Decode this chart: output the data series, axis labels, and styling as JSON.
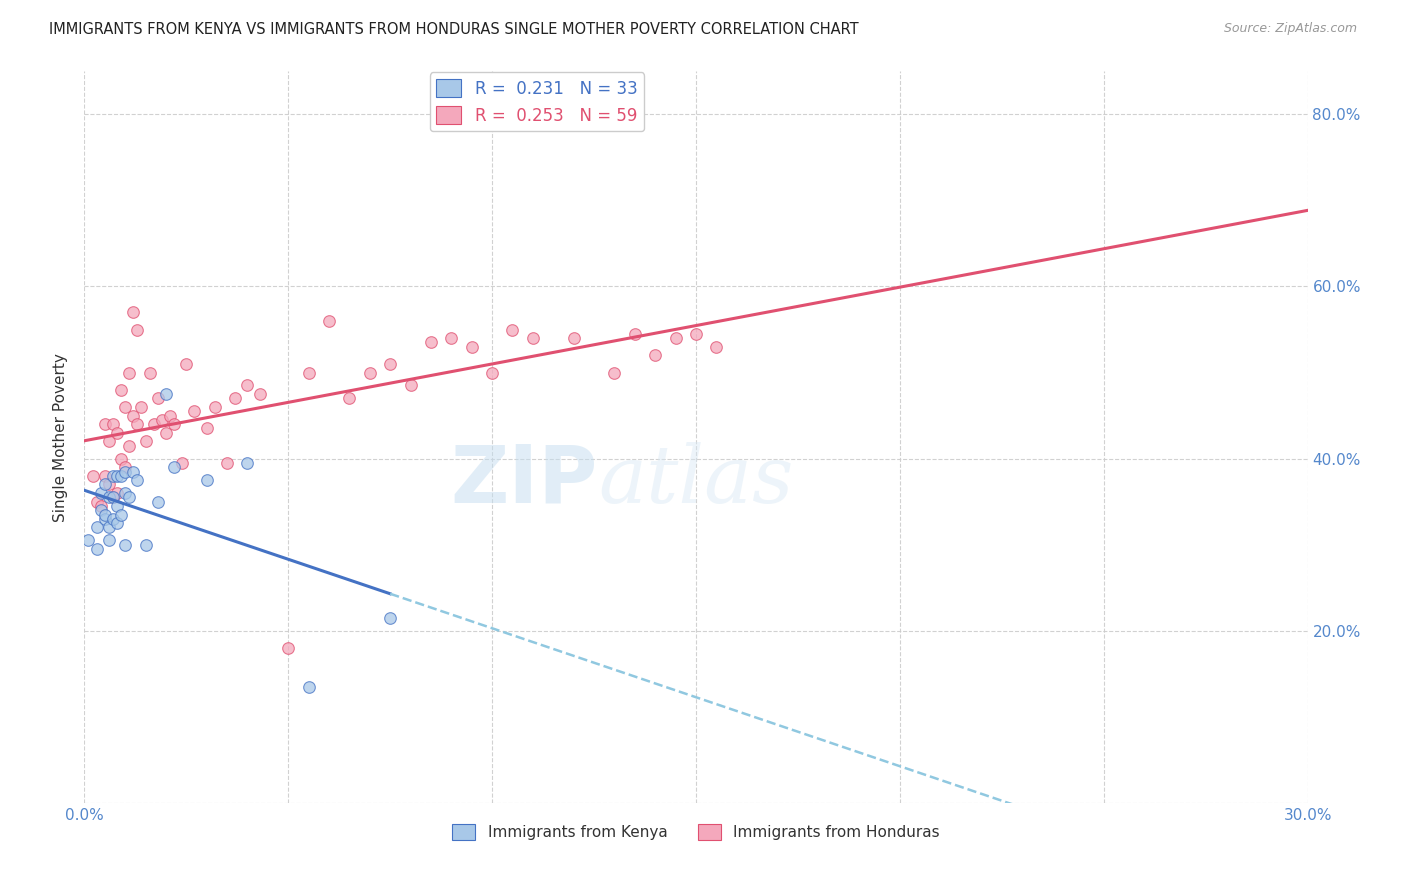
{
  "title": "IMMIGRANTS FROM KENYA VS IMMIGRANTS FROM HONDURAS SINGLE MOTHER POVERTY CORRELATION CHART",
  "source": "Source: ZipAtlas.com",
  "ylabel_label": "Single Mother Poverty",
  "x_min": 0.0,
  "x_max": 0.3,
  "y_min": 0.0,
  "y_max": 0.85,
  "kenya_R": 0.231,
  "kenya_N": 33,
  "honduras_R": 0.253,
  "honduras_N": 59,
  "kenya_color": "#a8c8e8",
  "honduras_color": "#f4a8bc",
  "kenya_line_color": "#4472c4",
  "honduras_line_color": "#e05070",
  "trendline_dashed_color": "#90c8e0",
  "kenya_x": [
    0.001,
    0.003,
    0.003,
    0.004,
    0.004,
    0.005,
    0.005,
    0.005,
    0.006,
    0.006,
    0.006,
    0.007,
    0.007,
    0.007,
    0.008,
    0.008,
    0.008,
    0.009,
    0.009,
    0.01,
    0.01,
    0.01,
    0.011,
    0.012,
    0.013,
    0.015,
    0.018,
    0.02,
    0.022,
    0.03,
    0.04,
    0.055,
    0.075
  ],
  "kenya_y": [
    0.305,
    0.295,
    0.32,
    0.34,
    0.36,
    0.33,
    0.37,
    0.335,
    0.305,
    0.32,
    0.355,
    0.33,
    0.355,
    0.38,
    0.325,
    0.345,
    0.38,
    0.335,
    0.38,
    0.3,
    0.36,
    0.385,
    0.355,
    0.385,
    0.375,
    0.3,
    0.35,
    0.475,
    0.39,
    0.375,
    0.395,
    0.135,
    0.215
  ],
  "honduras_x": [
    0.002,
    0.003,
    0.004,
    0.005,
    0.005,
    0.006,
    0.006,
    0.007,
    0.007,
    0.008,
    0.008,
    0.009,
    0.009,
    0.01,
    0.01,
    0.011,
    0.011,
    0.012,
    0.012,
    0.013,
    0.013,
    0.014,
    0.015,
    0.016,
    0.017,
    0.018,
    0.019,
    0.02,
    0.021,
    0.022,
    0.024,
    0.025,
    0.027,
    0.03,
    0.032,
    0.035,
    0.037,
    0.04,
    0.043,
    0.05,
    0.055,
    0.06,
    0.065,
    0.07,
    0.075,
    0.08,
    0.085,
    0.09,
    0.095,
    0.1,
    0.105,
    0.11,
    0.12,
    0.13,
    0.135,
    0.14,
    0.145,
    0.15,
    0.155
  ],
  "honduras_y": [
    0.38,
    0.35,
    0.345,
    0.38,
    0.44,
    0.37,
    0.42,
    0.355,
    0.44,
    0.36,
    0.43,
    0.4,
    0.48,
    0.39,
    0.46,
    0.415,
    0.5,
    0.45,
    0.57,
    0.44,
    0.55,
    0.46,
    0.42,
    0.5,
    0.44,
    0.47,
    0.445,
    0.43,
    0.45,
    0.44,
    0.395,
    0.51,
    0.455,
    0.435,
    0.46,
    0.395,
    0.47,
    0.485,
    0.475,
    0.18,
    0.5,
    0.56,
    0.47,
    0.5,
    0.51,
    0.485,
    0.535,
    0.54,
    0.53,
    0.5,
    0.55,
    0.54,
    0.54,
    0.5,
    0.545,
    0.52,
    0.54,
    0.545,
    0.53
  ],
  "watermark_zip": "ZIP",
  "watermark_atlas": "atlas",
  "marker_size": 70,
  "marker_alpha": 0.75,
  "grid_color": "#cccccc",
  "background_color": "#ffffff"
}
